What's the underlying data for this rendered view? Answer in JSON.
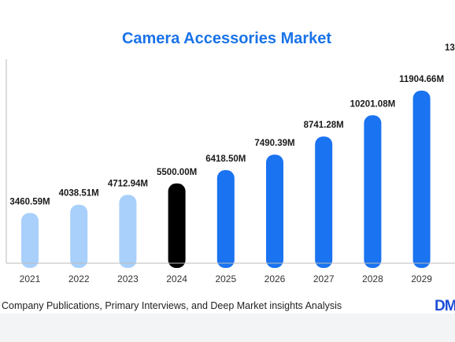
{
  "chart_data": {
    "type": "bar",
    "title": "Camera Accessories Market",
    "categories": [
      "2021",
      "2022",
      "2023",
      "2024",
      "2025",
      "2026",
      "2027",
      "2028",
      "2029"
    ],
    "values": [
      3460.59,
      4038.51,
      4712.94,
      5500.0,
      6418.5,
      7490.39,
      8741.28,
      10201.08,
      11904.66
    ],
    "value_labels": [
      "3460.59M",
      "4038.51M",
      "4712.94M",
      "5500.00M",
      "6418.50M",
      "7490.39M",
      "8741.28M",
      "10201.08M",
      "11904.66M"
    ],
    "bar_colors": [
      "#a8d0fb",
      "#a8d0fb",
      "#a8d0fb",
      "#000000",
      "#1a73f0",
      "#1a73f0",
      "#1a73f0",
      "#1a73f0",
      "#1a73f0"
    ],
    "truncated_label": "13",
    "ylim": [
      0,
      12500
    ],
    "xlabel": "",
    "ylabel": "",
    "grid": false,
    "legend": "none"
  },
  "colors": {
    "title": "#1a73e8",
    "axis": "#bbbbbb",
    "footer_band": "#f3f4f6",
    "logo": "#1d4ed8"
  },
  "footer": {
    "source": "Company Publications, Primary Interviews, and Deep Market insights Analysis"
  },
  "logo": {
    "text": "DM",
    "icon": "brand-logo-icon"
  }
}
